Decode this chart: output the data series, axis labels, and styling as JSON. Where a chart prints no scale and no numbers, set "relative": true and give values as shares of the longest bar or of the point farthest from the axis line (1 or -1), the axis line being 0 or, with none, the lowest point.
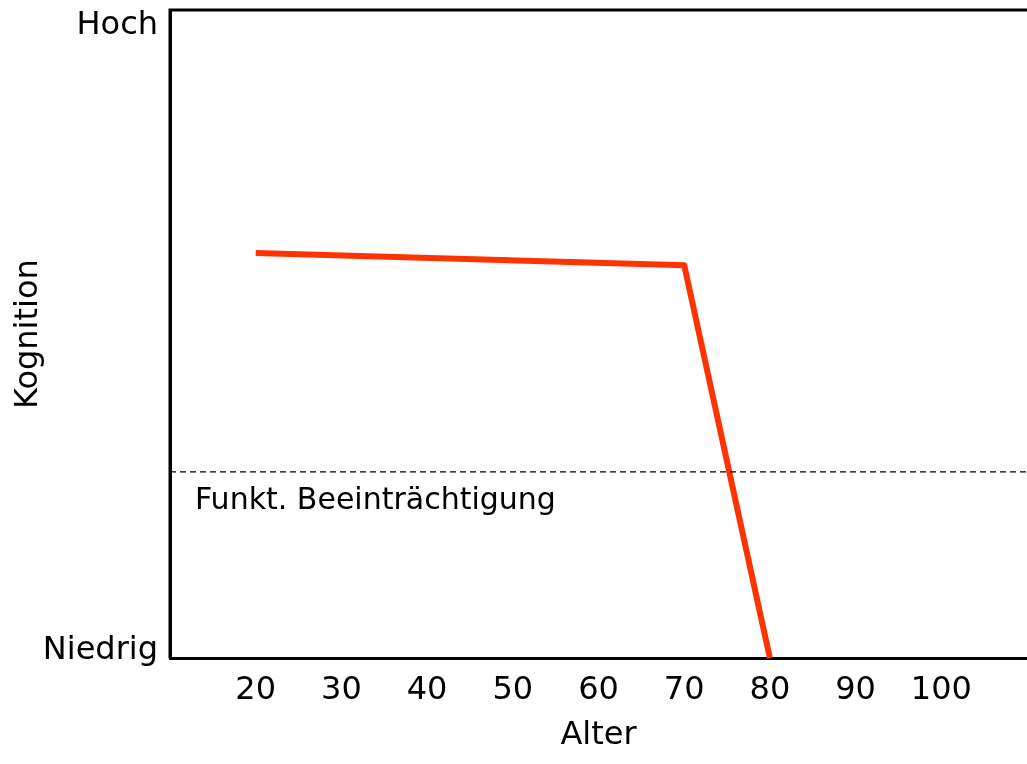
{
  "chart_data": {
    "type": "line",
    "xlabel": "Alter",
    "ylabel": "Kognition",
    "relative": true,
    "x": [
      20,
      70,
      80
    ],
    "series": [
      {
        "color": "#ff3300",
        "values": [
          1,
          0.97,
          0
        ]
      }
    ],
    "xlim": [
      10,
      110
    ],
    "xticks": [
      20,
      30,
      40,
      50,
      60,
      70,
      80,
      90,
      100
    ],
    "annotations": [
      "Hoch",
      "Niedrig"
    ],
    "ref_lines": [
      {
        "axis": "y",
        "value": 0.46,
        "label": "Funkt. Beeinträchtigung",
        "color": "#000000",
        "line_style": "dashed"
      }
    ],
    "grid": false,
    "legend": false,
    "marker": "none",
    "line_style": "solid"
  }
}
